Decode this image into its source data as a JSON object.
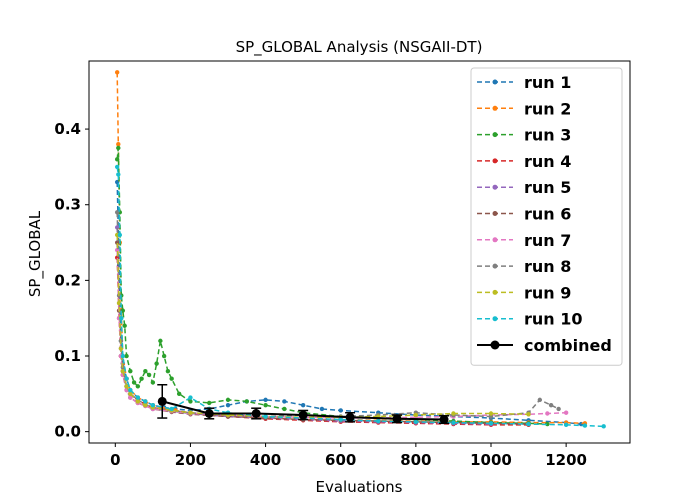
{
  "chart_data": {
    "type": "line",
    "title": "SP_GLOBAL Analysis (NSGAII-DT)",
    "xlabel": "Evaluations",
    "ylabel": "SP_GLOBAL",
    "xlim": [
      -70,
      1370
    ],
    "ylim": [
      -0.015,
      0.49
    ],
    "xticks": [
      0,
      200,
      400,
      600,
      800,
      1000,
      1200
    ],
    "yticks": [
      0.0,
      0.1,
      0.2,
      0.3,
      0.4
    ],
    "ytick_labels": [
      "0.0",
      "0.1",
      "0.2",
      "0.3",
      "0.4"
    ],
    "grid": false,
    "legend_position": "top-right",
    "series": [
      {
        "name": "run 1",
        "color": "#1f77b4",
        "x": [
          5,
          10,
          15,
          20,
          30,
          40,
          60,
          80,
          100,
          130,
          160,
          200,
          250,
          300,
          350,
          400,
          450,
          500,
          550,
          600,
          700,
          800,
          900,
          1000,
          1100,
          1200,
          1240
        ],
        "values": [
          0.33,
          0.22,
          0.12,
          0.09,
          0.07,
          0.055,
          0.045,
          0.04,
          0.035,
          0.032,
          0.03,
          0.028,
          0.03,
          0.035,
          0.04,
          0.042,
          0.04,
          0.035,
          0.03,
          0.028,
          0.025,
          0.022,
          0.02,
          0.018,
          0.015,
          0.012,
          0.01
        ]
      },
      {
        "name": "run 2",
        "color": "#ff7f0e",
        "x": [
          5,
          8,
          12,
          16,
          20,
          30,
          40,
          60,
          80,
          100,
          130,
          160,
          200,
          250,
          300,
          400,
          500,
          600,
          700,
          800,
          900,
          1000,
          1100,
          1200,
          1250
        ],
        "values": [
          0.475,
          0.38,
          0.25,
          0.16,
          0.1,
          0.07,
          0.055,
          0.045,
          0.04,
          0.035,
          0.03,
          0.028,
          0.025,
          0.022,
          0.02,
          0.018,
          0.017,
          0.016,
          0.015,
          0.014,
          0.013,
          0.013,
          0.012,
          0.012,
          0.011
        ]
      },
      {
        "name": "run 3",
        "color": "#2ca02c",
        "x": [
          5,
          8,
          12,
          16,
          20,
          25,
          30,
          40,
          50,
          60,
          70,
          80,
          90,
          100,
          110,
          120,
          130,
          140,
          150,
          170,
          200,
          250,
          300,
          350,
          400,
          450,
          500,
          600,
          700,
          800,
          900,
          1000,
          1100,
          1150
        ],
        "values": [
          0.36,
          0.375,
          0.29,
          0.18,
          0.16,
          0.14,
          0.1,
          0.08,
          0.065,
          0.06,
          0.07,
          0.08,
          0.075,
          0.065,
          0.09,
          0.12,
          0.1,
          0.08,
          0.07,
          0.05,
          0.04,
          0.038,
          0.042,
          0.04,
          0.035,
          0.03,
          0.025,
          0.02,
          0.018,
          0.016,
          0.014,
          0.012,
          0.011,
          0.01
        ]
      },
      {
        "name": "run 4",
        "color": "#d62728",
        "x": [
          5,
          10,
          15,
          20,
          30,
          40,
          60,
          80,
          100,
          150,
          200,
          300,
          400,
          500,
          600,
          700,
          800,
          900,
          1000,
          1100
        ],
        "values": [
          0.23,
          0.15,
          0.1,
          0.08,
          0.06,
          0.05,
          0.042,
          0.036,
          0.032,
          0.028,
          0.025,
          0.02,
          0.017,
          0.015,
          0.013,
          0.012,
          0.011,
          0.01,
          0.009,
          0.009
        ]
      },
      {
        "name": "run 5",
        "color": "#9467bd",
        "x": [
          5,
          10,
          15,
          20,
          30,
          40,
          60,
          80,
          100,
          150,
          200,
          300,
          400,
          500,
          600,
          700,
          800,
          900,
          1000
        ],
        "values": [
          0.27,
          0.17,
          0.11,
          0.08,
          0.06,
          0.05,
          0.04,
          0.035,
          0.03,
          0.027,
          0.024,
          0.02,
          0.018,
          0.016,
          0.014,
          0.013,
          0.012,
          0.011,
          0.01
        ]
      },
      {
        "name": "run 6",
        "color": "#8c564b",
        "x": [
          5,
          10,
          15,
          20,
          30,
          40,
          60,
          80,
          100,
          150,
          200,
          300,
          400,
          500,
          600,
          700,
          800,
          900,
          1000,
          1100
        ],
        "values": [
          0.25,
          0.16,
          0.1,
          0.075,
          0.055,
          0.045,
          0.038,
          0.034,
          0.03,
          0.026,
          0.023,
          0.02,
          0.018,
          0.016,
          0.015,
          0.014,
          0.013,
          0.012,
          0.011,
          0.01
        ]
      },
      {
        "name": "run 7",
        "color": "#e377c2",
        "x": [
          5,
          10,
          15,
          20,
          30,
          40,
          60,
          80,
          100,
          150,
          200,
          300,
          400,
          500,
          600,
          700,
          800,
          900,
          1000,
          1100,
          1150,
          1200
        ],
        "values": [
          0.24,
          0.15,
          0.1,
          0.075,
          0.055,
          0.045,
          0.038,
          0.034,
          0.03,
          0.027,
          0.024,
          0.022,
          0.02,
          0.019,
          0.018,
          0.018,
          0.019,
          0.02,
          0.022,
          0.023,
          0.024,
          0.025
        ]
      },
      {
        "name": "run 8",
        "color": "#7f7f7f",
        "x": [
          5,
          10,
          15,
          20,
          30,
          40,
          60,
          80,
          100,
          150,
          200,
          300,
          400,
          500,
          600,
          700,
          800,
          900,
          1000,
          1100,
          1130,
          1160,
          1180
        ],
        "values": [
          0.29,
          0.18,
          0.12,
          0.085,
          0.06,
          0.05,
          0.042,
          0.036,
          0.032,
          0.028,
          0.025,
          0.022,
          0.02,
          0.022,
          0.02,
          0.022,
          0.025,
          0.022,
          0.02,
          0.025,
          0.042,
          0.035,
          0.03
        ]
      },
      {
        "name": "run 9",
        "color": "#bcbd22",
        "x": [
          5,
          10,
          15,
          20,
          30,
          40,
          60,
          80,
          100,
          150,
          200,
          300,
          400,
          500,
          600,
          700,
          800,
          900,
          1000,
          1100
        ],
        "values": [
          0.26,
          0.17,
          0.11,
          0.08,
          0.06,
          0.05,
          0.04,
          0.035,
          0.032,
          0.028,
          0.025,
          0.022,
          0.02,
          0.019,
          0.019,
          0.02,
          0.022,
          0.024,
          0.024,
          0.023
        ]
      },
      {
        "name": "run 10",
        "color": "#17becf",
        "x": [
          5,
          8,
          12,
          16,
          20,
          30,
          40,
          60,
          80,
          100,
          150,
          200,
          250,
          300,
          400,
          500,
          600,
          700,
          800,
          900,
          1000,
          1100,
          1200,
          1250,
          1300
        ],
        "values": [
          0.35,
          0.34,
          0.26,
          0.15,
          0.1,
          0.07,
          0.055,
          0.045,
          0.04,
          0.035,
          0.03,
          0.045,
          0.03,
          0.025,
          0.02,
          0.018,
          0.016,
          0.014,
          0.013,
          0.012,
          0.011,
          0.01,
          0.009,
          0.008,
          0.007
        ]
      },
      {
        "name": "combined",
        "color": "#000000",
        "x": [
          125,
          250,
          375,
          500,
          625,
          750,
          875
        ],
        "values": [
          0.04,
          0.024,
          0.024,
          0.022,
          0.019,
          0.017,
          0.016
        ],
        "error": [
          0.022,
          0.007,
          0.007,
          0.006,
          0.006,
          0.005,
          0.005
        ]
      }
    ]
  }
}
